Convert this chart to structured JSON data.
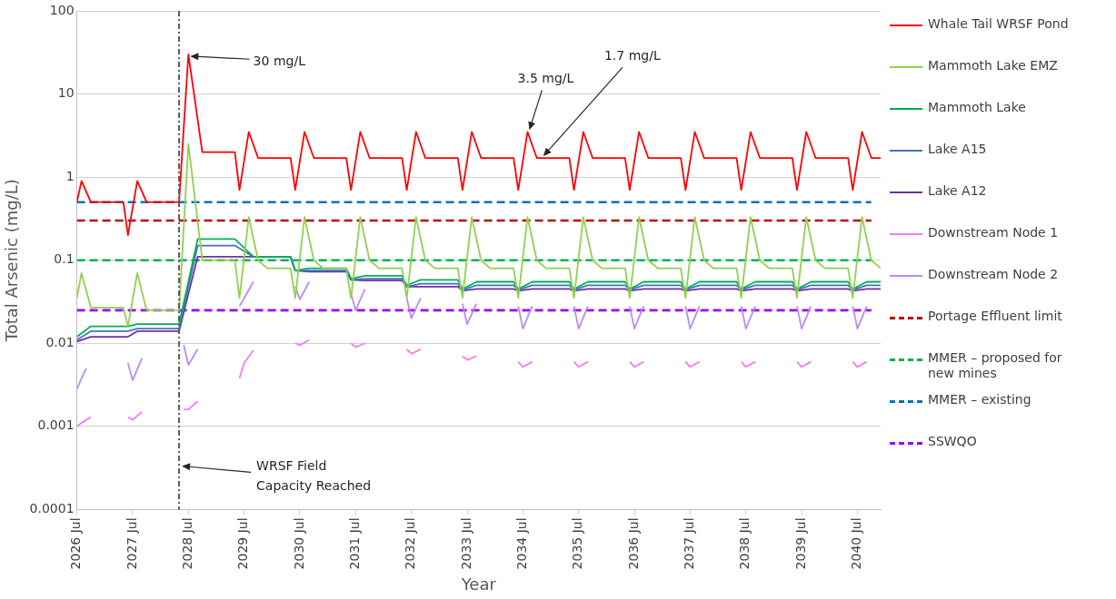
{
  "chart_data": {
    "type": "line",
    "xlabel": "Year",
    "ylabel": "Total Arsenic (mg/L)",
    "log": "y",
    "grid": "y",
    "legend": "right",
    "marker": "none",
    "line_style": "solid",
    "xlim": [
      "2026-07",
      "2040-12"
    ],
    "xticks": [
      {
        "value": "2026-07",
        "label": "2026 Jul"
      },
      {
        "value": "2027-07",
        "label": "2027 Jul"
      },
      {
        "value": "2028-07",
        "label": "2028 Jul"
      },
      {
        "value": "2029-07",
        "label": "2029 Jul"
      },
      {
        "value": "2030-07",
        "label": "2030 Jul"
      },
      {
        "value": "2031-07",
        "label": "2031 Jul"
      },
      {
        "value": "2032-07",
        "label": "2032 Jul"
      },
      {
        "value": "2033-07",
        "label": "2033 Jul"
      },
      {
        "value": "2034-07",
        "label": "2034 Jul"
      },
      {
        "value": "2035-07",
        "label": "2035 Jul"
      },
      {
        "value": "2036-07",
        "label": "2036 Jul"
      },
      {
        "value": "2037-07",
        "label": "2037 Jul"
      },
      {
        "value": "2038-07",
        "label": "2038 Jul"
      },
      {
        "value": "2039-07",
        "label": "2039 Jul"
      },
      {
        "value": "2040-07",
        "label": "2040 Jul"
      }
    ],
    "ylim": [
      0.0001,
      100
    ],
    "yticks": [
      0.0001,
      0.001,
      0.01,
      0.1,
      1,
      10,
      100
    ],
    "series": [
      {
        "name": "Whale Tail WRSF Pond",
        "color": "#ff0000",
        "x": [
          "2026-07",
          "2026-08",
          "2026-10",
          "2027-05",
          "2027-06",
          "2027-08",
          "2027-10",
          "2028-05",
          "2028-07",
          "2028-10",
          "2029-05",
          "2029-06",
          "2029-08",
          "2029-10",
          "2030-05",
          "2030-06",
          "2030-08",
          "2030-10",
          "2031-05",
          "2031-06",
          "2031-08",
          "2031-10",
          "2032-05",
          "2032-06",
          "2032-08",
          "2032-10",
          "2033-05",
          "2033-06",
          "2033-08",
          "2033-10",
          "2034-05",
          "2034-06",
          "2034-08",
          "2034-10",
          "2035-05",
          "2035-06",
          "2035-08",
          "2035-10",
          "2036-05",
          "2036-06",
          "2036-08",
          "2036-10",
          "2037-05",
          "2037-06",
          "2037-08",
          "2037-10",
          "2038-05",
          "2038-06",
          "2038-08",
          "2038-10",
          "2039-05",
          "2039-06",
          "2039-08",
          "2039-10",
          "2040-05",
          "2040-06",
          "2040-08",
          "2040-10",
          "2040-12"
        ],
        "values": [
          0.5,
          0.9,
          0.5,
          0.5,
          0.2,
          0.9,
          0.5,
          0.5,
          30,
          2,
          2,
          0.7,
          3.5,
          1.7,
          1.7,
          0.7,
          3.5,
          1.7,
          1.7,
          0.7,
          3.5,
          1.7,
          1.7,
          0.7,
          3.5,
          1.7,
          1.7,
          0.7,
          3.5,
          1.7,
          1.7,
          0.7,
          3.5,
          1.7,
          1.7,
          0.7,
          3.5,
          1.7,
          1.7,
          0.7,
          3.5,
          1.7,
          1.7,
          0.7,
          3.5,
          1.7,
          1.7,
          0.7,
          3.5,
          1.7,
          1.7,
          0.7,
          3.5,
          1.7,
          1.7,
          0.7,
          3.5,
          1.7,
          1.7
        ]
      },
      {
        "name": "Mammoth Lake EMZ",
        "color": "#92d050",
        "x": [
          "2026-07",
          "2026-08",
          "2026-10",
          "2027-05",
          "2027-06",
          "2027-08",
          "2027-10",
          "2028-05",
          "2028-07",
          "2028-10",
          "2029-05",
          "2029-06",
          "2029-08",
          "2029-10",
          "2029-12",
          "2030-05",
          "2030-06",
          "2030-08",
          "2030-10",
          "2030-12",
          "2031-05",
          "2031-06",
          "2031-08",
          "2031-10",
          "2031-12",
          "2032-05",
          "2032-06",
          "2032-08",
          "2032-10",
          "2032-12",
          "2033-05",
          "2033-06",
          "2033-08",
          "2033-10",
          "2033-12",
          "2034-05",
          "2034-06",
          "2034-08",
          "2034-10",
          "2034-12",
          "2035-05",
          "2035-06",
          "2035-08",
          "2035-10",
          "2035-12",
          "2036-05",
          "2036-06",
          "2036-08",
          "2036-10",
          "2036-12",
          "2037-05",
          "2037-06",
          "2037-08",
          "2037-10",
          "2037-12",
          "2038-05",
          "2038-06",
          "2038-08",
          "2038-10",
          "2038-12",
          "2039-05",
          "2039-06",
          "2039-08",
          "2039-10",
          "2039-12",
          "2040-05",
          "2040-06",
          "2040-08",
          "2040-10",
          "2040-12"
        ],
        "values": [
          0.035,
          0.07,
          0.027,
          0.027,
          0.016,
          0.07,
          0.025,
          0.025,
          2.5,
          0.1,
          0.1,
          0.035,
          0.33,
          0.1,
          0.08,
          0.08,
          0.035,
          0.33,
          0.1,
          0.08,
          0.08,
          0.035,
          0.33,
          0.1,
          0.08,
          0.08,
          0.035,
          0.33,
          0.1,
          0.08,
          0.08,
          0.035,
          0.33,
          0.1,
          0.08,
          0.08,
          0.035,
          0.33,
          0.1,
          0.08,
          0.08,
          0.035,
          0.33,
          0.1,
          0.08,
          0.08,
          0.035,
          0.33,
          0.1,
          0.08,
          0.08,
          0.035,
          0.33,
          0.1,
          0.08,
          0.08,
          0.035,
          0.33,
          0.1,
          0.08,
          0.08,
          0.035,
          0.33,
          0.1,
          0.08,
          0.08,
          0.035,
          0.33,
          0.1,
          0.08
        ]
      },
      {
        "name": "Mammoth Lake",
        "color": "#00b050",
        "x": [
          "2026-07",
          "2026-10",
          "2027-06",
          "2027-08",
          "2028-05",
          "2028-09",
          "2029-05",
          "2029-09",
          "2030-05",
          "2030-06",
          "2030-09",
          "2031-05",
          "2031-06",
          "2031-09",
          "2032-05",
          "2032-06",
          "2032-09",
          "2033-05",
          "2033-06",
          "2033-09",
          "2034-05",
          "2034-06",
          "2034-09",
          "2035-05",
          "2035-06",
          "2035-09",
          "2036-05",
          "2036-06",
          "2036-09",
          "2037-05",
          "2037-06",
          "2037-09",
          "2038-05",
          "2038-06",
          "2038-09",
          "2039-05",
          "2039-06",
          "2039-09",
          "2040-05",
          "2040-06",
          "2040-09",
          "2040-12"
        ],
        "values": [
          0.012,
          0.016,
          0.016,
          0.017,
          0.017,
          0.18,
          0.18,
          0.11,
          0.11,
          0.075,
          0.08,
          0.08,
          0.06,
          0.065,
          0.065,
          0.05,
          0.058,
          0.058,
          0.045,
          0.055,
          0.055,
          0.045,
          0.055,
          0.055,
          0.045,
          0.055,
          0.055,
          0.045,
          0.055,
          0.055,
          0.045,
          0.055,
          0.055,
          0.045,
          0.055,
          0.055,
          0.045,
          0.055,
          0.055,
          0.045,
          0.055,
          0.055
        ]
      },
      {
        "name": "Lake A15",
        "color": "#4472c4",
        "x": [
          "2026-07",
          "2026-10",
          "2027-06",
          "2027-08",
          "2028-05",
          "2028-09",
          "2029-05",
          "2029-09",
          "2030-05",
          "2030-06",
          "2030-09",
          "2031-05",
          "2031-06",
          "2031-09",
          "2032-05",
          "2032-06",
          "2032-09",
          "2033-05",
          "2033-06",
          "2033-09",
          "2034-05",
          "2034-06",
          "2034-09",
          "2035-05",
          "2035-06",
          "2035-09",
          "2036-05",
          "2036-06",
          "2036-09",
          "2037-05",
          "2037-06",
          "2037-09",
          "2038-05",
          "2038-06",
          "2038-09",
          "2039-05",
          "2039-06",
          "2039-09",
          "2040-05",
          "2040-06",
          "2040-09",
          "2040-12"
        ],
        "values": [
          0.011,
          0.014,
          0.014,
          0.015,
          0.015,
          0.15,
          0.15,
          0.11,
          0.11,
          0.075,
          0.075,
          0.075,
          0.058,
          0.06,
          0.06,
          0.048,
          0.052,
          0.052,
          0.044,
          0.05,
          0.05,
          0.044,
          0.05,
          0.05,
          0.044,
          0.05,
          0.05,
          0.044,
          0.05,
          0.05,
          0.044,
          0.05,
          0.05,
          0.044,
          0.05,
          0.05,
          0.044,
          0.05,
          0.05,
          0.044,
          0.05,
          0.05
        ]
      },
      {
        "name": "Lake A12",
        "color": "#7030a0",
        "x": [
          "2026-07",
          "2026-10",
          "2027-06",
          "2027-08",
          "2028-05",
          "2028-09",
          "2029-05",
          "2029-09",
          "2030-05",
          "2030-06",
          "2030-09",
          "2031-05",
          "2031-06",
          "2031-09",
          "2032-05",
          "2032-06",
          "2032-09",
          "2033-05",
          "2033-06",
          "2033-09",
          "2034-05",
          "2034-06",
          "2034-09",
          "2035-05",
          "2035-06",
          "2035-09",
          "2036-05",
          "2036-06",
          "2036-09",
          "2037-05",
          "2037-06",
          "2037-09",
          "2038-05",
          "2038-06",
          "2038-09",
          "2039-05",
          "2039-06",
          "2039-09",
          "2040-05",
          "2040-06",
          "2040-09",
          "2040-12"
        ],
        "values": [
          0.0105,
          0.012,
          0.012,
          0.014,
          0.014,
          0.11,
          0.11,
          0.11,
          0.11,
          0.075,
          0.073,
          0.073,
          0.058,
          0.057,
          0.057,
          0.048,
          0.048,
          0.048,
          0.043,
          0.045,
          0.045,
          0.043,
          0.045,
          0.045,
          0.043,
          0.045,
          0.045,
          0.043,
          0.045,
          0.045,
          0.043,
          0.045,
          0.045,
          0.043,
          0.045,
          0.045,
          0.043,
          0.045,
          0.045,
          0.043,
          0.045,
          0.045
        ]
      },
      {
        "name": "Downstream Node 1",
        "color": "#f07cf0",
        "x": [
          "2026-07",
          "2026-08",
          "2026-10",
          "2026-12",
          "2027-06",
          "2027-07",
          "2027-09",
          "2027-12",
          "2028-06",
          "2028-07",
          "2028-09",
          "2028-12",
          "2029-06",
          "2029-07",
          "2029-09",
          "2029-12",
          "2030-06",
          "2030-07",
          "2030-09",
          "2030-12",
          "2031-06",
          "2031-07",
          "2031-09",
          "2031-12",
          "2032-06",
          "2032-07",
          "2032-09",
          "2032-12",
          "2033-06",
          "2033-07",
          "2033-09",
          "2033-12",
          "2034-06",
          "2034-07",
          "2034-09",
          "2034-12",
          "2035-06",
          "2035-07",
          "2035-09",
          "2035-12",
          "2036-06",
          "2036-07",
          "2036-09",
          "2036-12",
          "2037-06",
          "2037-07",
          "2037-09",
          "2037-12",
          "2038-06",
          "2038-07",
          "2038-09",
          "2038-12",
          "2039-06",
          "2039-07",
          "2039-09",
          "2039-12",
          "2040-06",
          "2040-07",
          "2040-09"
        ],
        "values": [
          0.001,
          0.0011,
          0.0013,
          null,
          0.0013,
          0.0012,
          0.0015,
          null,
          0.0016,
          0.0016,
          0.002,
          null,
          0.0038,
          0.0058,
          0.0083,
          null,
          0.01,
          0.0095,
          0.011,
          null,
          0.01,
          0.009,
          0.01,
          null,
          0.0085,
          0.0075,
          0.0085,
          null,
          0.007,
          0.0063,
          0.007,
          null,
          0.006,
          0.0052,
          0.006,
          null,
          0.006,
          0.0052,
          0.006,
          null,
          0.006,
          0.0052,
          0.006,
          null,
          0.006,
          0.0052,
          0.006,
          null,
          0.006,
          0.0052,
          0.006,
          null,
          0.006,
          0.0052,
          0.006,
          null,
          0.006,
          0.0052,
          0.006
        ]
      },
      {
        "name": "Downstream Node 2",
        "color": "#b98cf5",
        "x": [
          "2026-07",
          "2026-08",
          "2026-09",
          "2026-12",
          "2027-06",
          "2027-07",
          "2027-09",
          "2027-12",
          "2028-06",
          "2028-07",
          "2028-09",
          "2028-12",
          "2029-06",
          "2029-07",
          "2029-09",
          "2029-12",
          "2030-06",
          "2030-07",
          "2030-09",
          "2030-12",
          "2031-06",
          "2031-07",
          "2031-09",
          "2031-12",
          "2032-06",
          "2032-07",
          "2032-09",
          "2032-12",
          "2033-06",
          "2033-07",
          "2033-09",
          "2033-12",
          "2034-06",
          "2034-07",
          "2034-09",
          "2034-12",
          "2035-06",
          "2035-07",
          "2035-09",
          "2035-12",
          "2036-06",
          "2036-07",
          "2036-09",
          "2036-12",
          "2037-06",
          "2037-07",
          "2037-09",
          "2037-12",
          "2038-06",
          "2038-07",
          "2038-09",
          "2038-12",
          "2039-06",
          "2039-07",
          "2039-09",
          "2039-12",
          "2040-06",
          "2040-07",
          "2040-09"
        ],
        "values": [
          0.0028,
          0.0038,
          0.005,
          null,
          0.0058,
          0.0036,
          0.0066,
          null,
          0.0095,
          0.0055,
          0.0085,
          null,
          0.028,
          0.035,
          0.055,
          null,
          0.048,
          0.034,
          0.055,
          null,
          0.04,
          0.025,
          0.045,
          null,
          0.035,
          0.02,
          0.035,
          null,
          0.03,
          0.017,
          0.03,
          null,
          0.028,
          0.015,
          0.028,
          null,
          0.028,
          0.015,
          0.028,
          null,
          0.028,
          0.015,
          0.028,
          null,
          0.028,
          0.015,
          0.028,
          null,
          0.028,
          0.015,
          0.028,
          null,
          0.028,
          0.015,
          0.028,
          null,
          0.028,
          0.015,
          0.028
        ]
      },
      {
        "name": "Portage Effluent limit",
        "color": "#c00000",
        "line_style": "dashed",
        "x": [
          "2026-07",
          "2040-10"
        ],
        "values": [
          0.3,
          0.3
        ]
      },
      {
        "name": "MMER – proposed for new mines",
        "color": "#00b050",
        "line_style": "dashed",
        "x": [
          "2026-07",
          "2040-10"
        ],
        "values": [
          0.1,
          0.1
        ]
      },
      {
        "name": "MMER – existing",
        "color": "#0070c0",
        "line_style": "dashed",
        "x": [
          "2026-07",
          "2040-10"
        ],
        "values": [
          0.5,
          0.5
        ]
      },
      {
        "name": "SSWQO",
        "color": "#9900ff",
        "line_style": "dashed",
        "x": [
          "2026-07",
          "2040-10"
        ],
        "values": [
          0.025,
          0.025
        ]
      }
    ],
    "ref_lines": [
      {
        "axis": "x",
        "value": "2028-05",
        "label": "WRSF Field Capacity Reached",
        "color": "#595959",
        "line_style": "dashdot"
      }
    ],
    "annotations": [
      {
        "text": "30 mg/L",
        "x": "2028-07",
        "y": 30
      },
      {
        "text": "3.5 mg/L",
        "x": "2034-08",
        "y": 3.5
      },
      {
        "text": "1.7 mg/L",
        "x": "2034-11",
        "y": 1.7
      }
    ]
  }
}
